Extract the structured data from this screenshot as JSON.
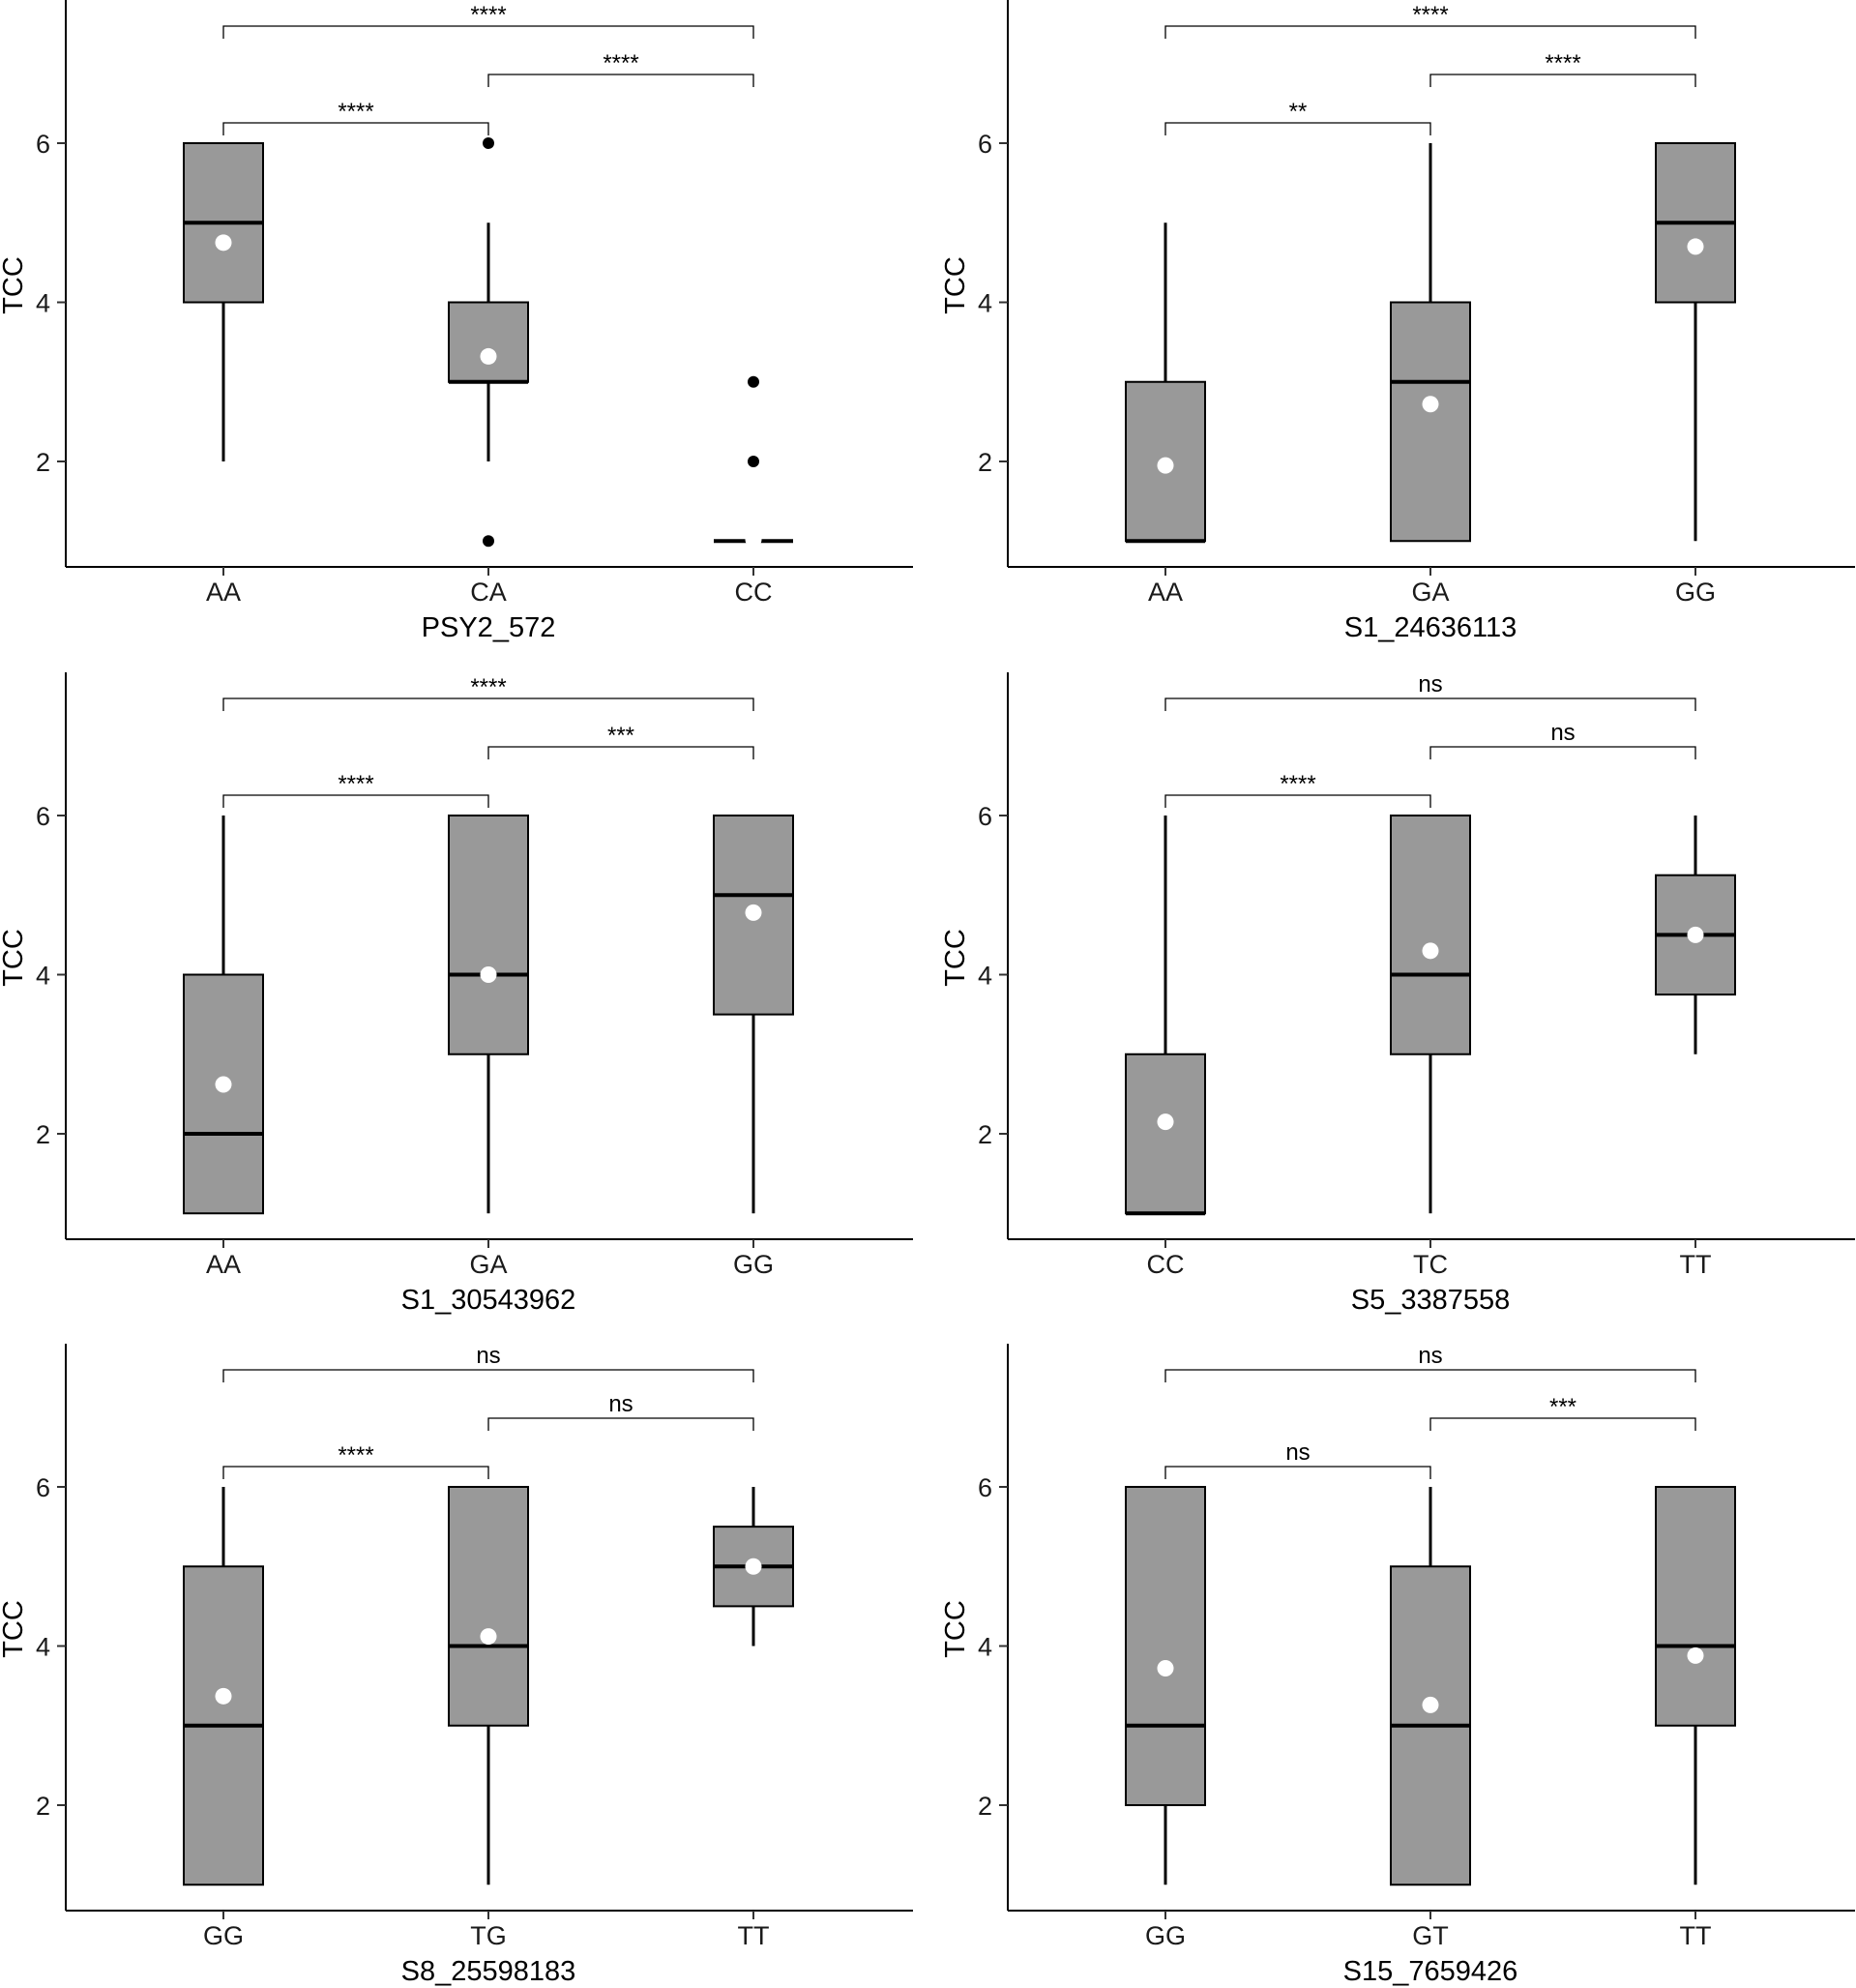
{
  "chart_data": [
    {
      "type": "box",
      "title": "",
      "xlabel": "PSY2_572",
      "ylabel": "TCC",
      "ylim": [
        0.7,
        7.6
      ],
      "yticks": [
        2,
        4,
        6
      ],
      "fill_color": "#999999",
      "categories": [
        "AA",
        "CA",
        "CC"
      ],
      "boxes": [
        {
          "min": 2,
          "q1": 4,
          "median": 5,
          "q3": 6,
          "max": 6,
          "mean": 4.75,
          "outliers": []
        },
        {
          "min": 2,
          "q1": 3,
          "median": 3,
          "q3": 4,
          "max": 5,
          "mean": 3.32,
          "outliers": [
            6,
            1
          ]
        },
        {
          "min": 1,
          "q1": 1,
          "median": 1,
          "q3": 1,
          "max": 1,
          "mean": 1.02,
          "outliers": [
            3,
            2
          ]
        }
      ],
      "comparisons": [
        {
          "from": 0,
          "to": 1,
          "level": 0,
          "label": "****"
        },
        {
          "from": 1,
          "to": 2,
          "level": 1,
          "label": "****"
        },
        {
          "from": 0,
          "to": 2,
          "level": 2,
          "label": "****"
        }
      ]
    },
    {
      "type": "box",
      "title": "",
      "xlabel": "S1_24636113",
      "ylabel": "TCC",
      "ylim": [
        0.7,
        7.6
      ],
      "yticks": [
        2,
        4,
        6
      ],
      "fill_color": "#999999",
      "categories": [
        "AA",
        "GA",
        "GG"
      ],
      "boxes": [
        {
          "min": 1,
          "q1": 1,
          "median": 1,
          "q3": 3,
          "max": 5,
          "mean": 1.95,
          "outliers": []
        },
        {
          "min": 1,
          "q1": 1,
          "median": 3,
          "q3": 4,
          "max": 6,
          "mean": 2.72,
          "outliers": []
        },
        {
          "min": 1,
          "q1": 4,
          "median": 5,
          "q3": 6,
          "max": 6,
          "mean": 4.7,
          "outliers": []
        }
      ],
      "comparisons": [
        {
          "from": 0,
          "to": 1,
          "level": 0,
          "label": "**"
        },
        {
          "from": 1,
          "to": 2,
          "level": 1,
          "label": "****"
        },
        {
          "from": 0,
          "to": 2,
          "level": 2,
          "label": "****"
        }
      ]
    },
    {
      "type": "box",
      "title": "",
      "xlabel": "S1_30543962",
      "ylabel": "TCC",
      "ylim": [
        0.7,
        7.6
      ],
      "yticks": [
        2,
        4,
        6
      ],
      "fill_color": "#999999",
      "categories": [
        "AA",
        "GA",
        "GG"
      ],
      "boxes": [
        {
          "min": 1,
          "q1": 1,
          "median": 2,
          "q3": 4,
          "max": 6,
          "mean": 2.62,
          "outliers": []
        },
        {
          "min": 1,
          "q1": 3,
          "median": 4,
          "q3": 6,
          "max": 6,
          "mean": 4.0,
          "outliers": []
        },
        {
          "min": 1,
          "q1": 3.5,
          "median": 5,
          "q3": 6,
          "max": 6,
          "mean": 4.78,
          "outliers": []
        }
      ],
      "comparisons": [
        {
          "from": 0,
          "to": 1,
          "level": 0,
          "label": "****"
        },
        {
          "from": 1,
          "to": 2,
          "level": 1,
          "label": "***"
        },
        {
          "from": 0,
          "to": 2,
          "level": 2,
          "label": "****"
        }
      ]
    },
    {
      "type": "box",
      "title": "",
      "xlabel": "S5_3387558",
      "ylabel": "TCC",
      "ylim": [
        0.7,
        7.6
      ],
      "yticks": [
        2,
        4,
        6
      ],
      "fill_color": "#999999",
      "categories": [
        "CC",
        "TC",
        "TT"
      ],
      "boxes": [
        {
          "min": 1,
          "q1": 1,
          "median": 1,
          "q3": 3,
          "max": 6,
          "mean": 2.15,
          "outliers": []
        },
        {
          "min": 1,
          "q1": 3,
          "median": 4,
          "q3": 6,
          "max": 6,
          "mean": 4.3,
          "outliers": []
        },
        {
          "min": 3,
          "q1": 3.75,
          "median": 4.5,
          "q3": 5.25,
          "max": 6,
          "mean": 4.5,
          "outliers": []
        }
      ],
      "comparisons": [
        {
          "from": 0,
          "to": 1,
          "level": 0,
          "label": "****"
        },
        {
          "from": 1,
          "to": 2,
          "level": 1,
          "label": "ns"
        },
        {
          "from": 0,
          "to": 2,
          "level": 2,
          "label": "ns"
        }
      ]
    },
    {
      "type": "box",
      "title": "",
      "xlabel": "S8_25598183",
      "ylabel": "TCC",
      "ylim": [
        0.7,
        7.6
      ],
      "yticks": [
        2,
        4,
        6
      ],
      "fill_color": "#999999",
      "categories": [
        "GG",
        "TG",
        "TT"
      ],
      "boxes": [
        {
          "min": 1,
          "q1": 1,
          "median": 3,
          "q3": 5,
          "max": 6,
          "mean": 3.37,
          "outliers": []
        },
        {
          "min": 1,
          "q1": 3,
          "median": 4,
          "q3": 6,
          "max": 6,
          "mean": 4.12,
          "outliers": []
        },
        {
          "min": 4,
          "q1": 4.5,
          "median": 5,
          "q3": 5.5,
          "max": 6,
          "mean": 5.0,
          "outliers": []
        }
      ],
      "comparisons": [
        {
          "from": 0,
          "to": 1,
          "level": 0,
          "label": "****"
        },
        {
          "from": 1,
          "to": 2,
          "level": 1,
          "label": "ns"
        },
        {
          "from": 0,
          "to": 2,
          "level": 2,
          "label": "ns"
        }
      ]
    },
    {
      "type": "box",
      "title": "",
      "xlabel": "S15_7659426",
      "ylabel": "TCC",
      "ylim": [
        0.7,
        7.6
      ],
      "yticks": [
        2,
        4,
        6
      ],
      "fill_color": "#999999",
      "categories": [
        "GG",
        "GT",
        "TT"
      ],
      "boxes": [
        {
          "min": 1,
          "q1": 2,
          "median": 3,
          "q3": 6,
          "max": 6,
          "mean": 3.72,
          "outliers": []
        },
        {
          "min": 1,
          "q1": 1,
          "median": 3,
          "q3": 5,
          "max": 6,
          "mean": 3.26,
          "outliers": []
        },
        {
          "min": 1,
          "q1": 3,
          "median": 4,
          "q3": 6,
          "max": 6,
          "mean": 3.88,
          "outliers": []
        }
      ],
      "comparisons": [
        {
          "from": 0,
          "to": 1,
          "level": 0,
          "label": "ns"
        },
        {
          "from": 1,
          "to": 2,
          "level": 1,
          "label": "***"
        },
        {
          "from": 0,
          "to": 2,
          "level": 2,
          "label": "ns"
        }
      ]
    }
  ]
}
